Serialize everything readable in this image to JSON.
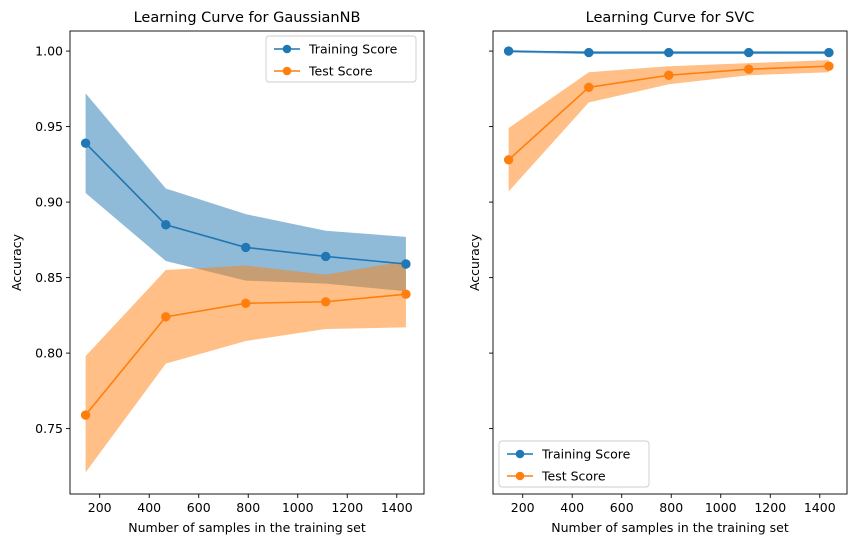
{
  "chart_data": [
    {
      "type": "line",
      "title": "Learning Curve for GaussianNB",
      "xlabel": "Number of samples in the training set",
      "ylabel": "Accuracy",
      "xlim": [
        80,
        1510
      ],
      "ylim": [
        0.7067,
        1.0133
      ],
      "xticks": [
        200,
        400,
        600,
        800,
        1000,
        1200,
        1400
      ],
      "yticks": [
        0.75,
        0.8,
        0.85,
        0.9,
        0.95,
        1.0
      ],
      "yticklabels": [
        "0.75",
        "0.80",
        "0.85",
        "0.90",
        "0.95",
        "1.00"
      ],
      "legend": "top-right",
      "grid": false,
      "x": [
        143,
        467,
        790,
        1113,
        1437
      ],
      "series": [
        {
          "name": "Training Score",
          "color": "#1f77b4",
          "values": [
            0.939,
            0.885,
            0.87,
            0.864,
            0.859
          ],
          "lower": [
            0.906,
            0.861,
            0.848,
            0.846,
            0.841
          ],
          "upper": [
            0.972,
            0.909,
            0.892,
            0.881,
            0.877
          ]
        },
        {
          "name": "Test Score",
          "color": "#ff7f0e",
          "values": [
            0.759,
            0.824,
            0.833,
            0.834,
            0.839
          ],
          "lower": [
            0.721,
            0.793,
            0.808,
            0.816,
            0.817
          ],
          "upper": [
            0.798,
            0.855,
            0.858,
            0.852,
            0.861
          ]
        }
      ]
    },
    {
      "type": "line",
      "title": "Learning Curve for SVC",
      "xlabel": "Number of samples in the training set",
      "ylabel": "Accuracy",
      "xlim": [
        80,
        1510
      ],
      "ylim": [
        0.7067,
        1.0133
      ],
      "xticks": [
        200,
        400,
        600,
        800,
        1000,
        1200,
        1400
      ],
      "yticks": [
        0.75,
        0.8,
        0.85,
        0.9,
        0.95,
        1.0
      ],
      "yticklabels": [],
      "legend": "bottom-left",
      "grid": false,
      "x": [
        143,
        467,
        790,
        1113,
        1437
      ],
      "series": [
        {
          "name": "Training Score",
          "color": "#1f77b4",
          "values": [
            1.0,
            0.999,
            0.999,
            0.999,
            0.999
          ],
          "lower": [
            0.999,
            0.998,
            0.998,
            0.998,
            0.998
          ],
          "upper": [
            1.0,
            1.0,
            1.0,
            1.0,
            1.0
          ]
        },
        {
          "name": "Test Score",
          "color": "#ff7f0e",
          "values": [
            0.928,
            0.976,
            0.984,
            0.988,
            0.99
          ],
          "lower": [
            0.907,
            0.966,
            0.978,
            0.984,
            0.986
          ],
          "upper": [
            0.949,
            0.986,
            0.99,
            0.992,
            0.994
          ]
        }
      ]
    }
  ]
}
